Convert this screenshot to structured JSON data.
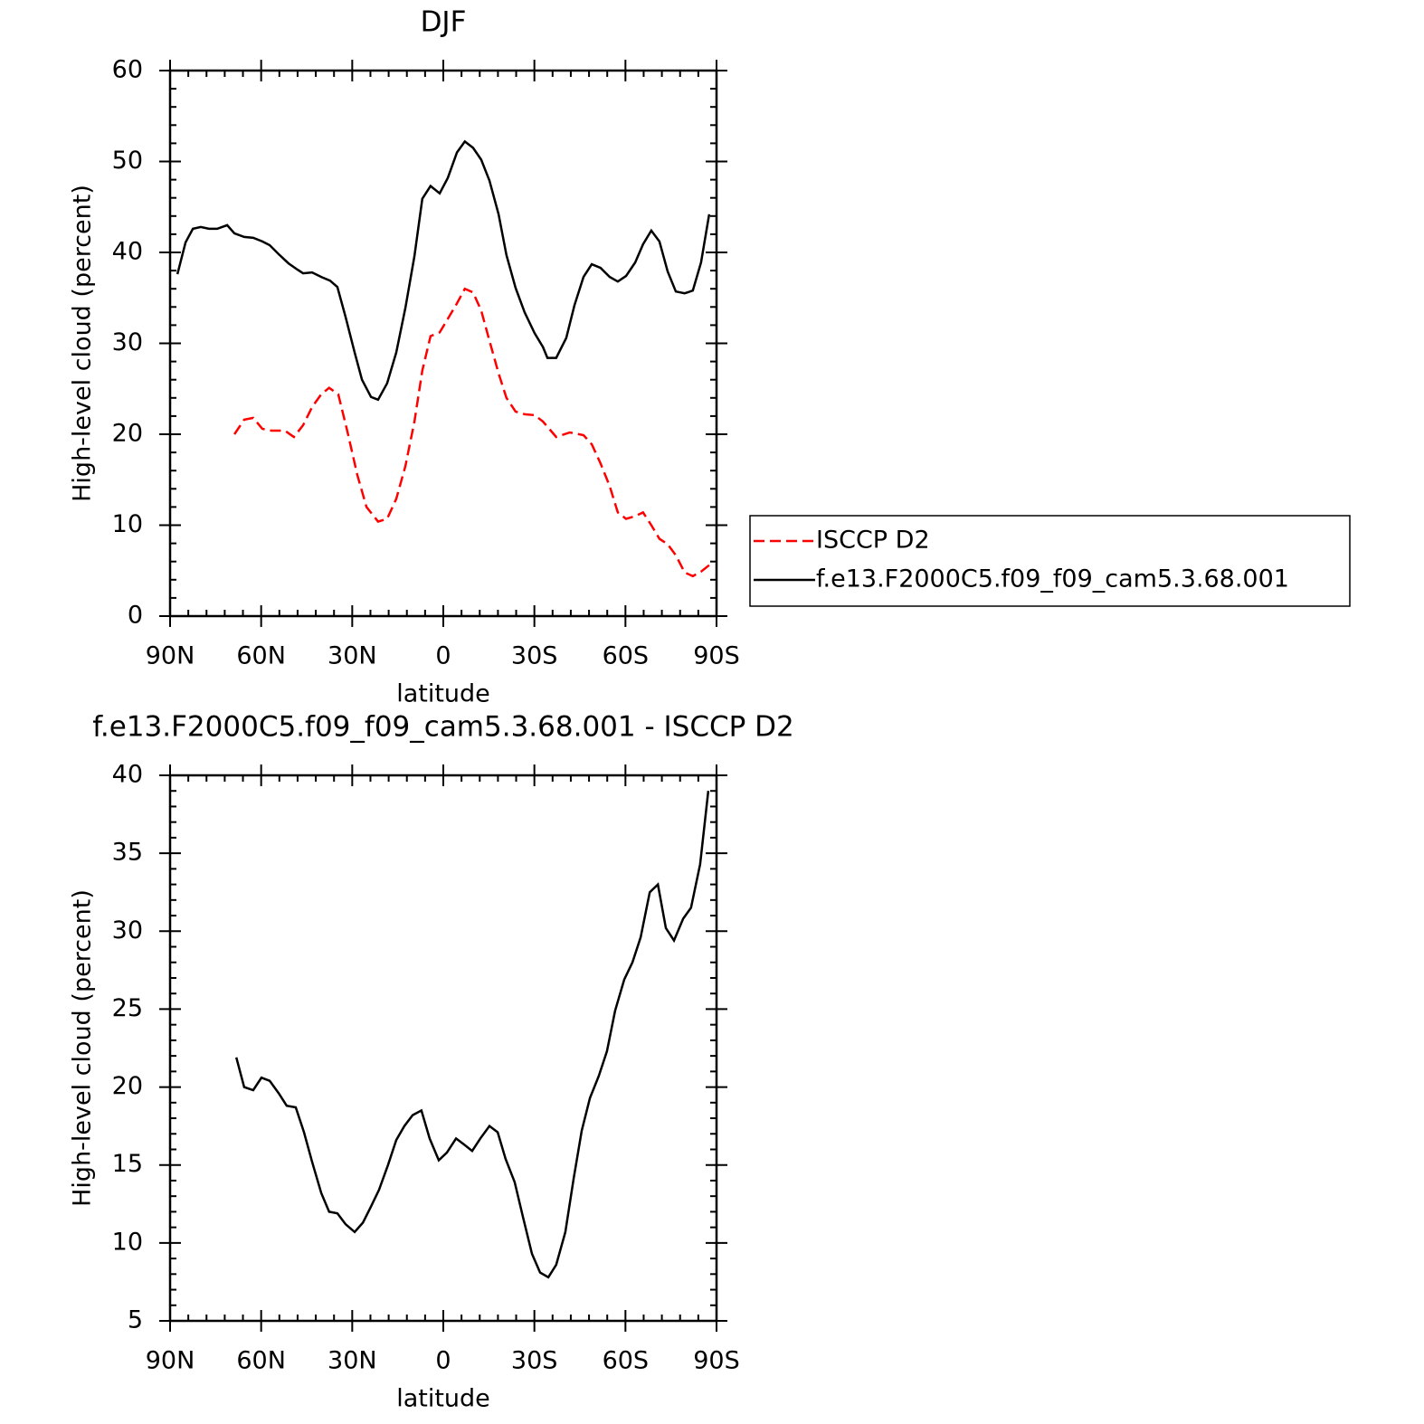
{
  "chart_data": [
    {
      "type": "line",
      "title": "DJF",
      "xlabel": "latitude",
      "ylabel": "High-level cloud (percent)",
      "xlim": [
        90,
        -90
      ],
      "xticks": [
        {
          "value": 90,
          "label": "90N"
        },
        {
          "value": 60,
          "label": "60N"
        },
        {
          "value": 30,
          "label": "30N"
        },
        0,
        {
          "value": -30,
          "label": "30S"
        },
        {
          "value": -60,
          "label": "60S"
        },
        {
          "value": -90,
          "label": "90S"
        }
      ],
      "ylim": [
        0,
        60
      ],
      "yticks": [
        0,
        10,
        20,
        30,
        40,
        50,
        60
      ],
      "minor_ticks": 5,
      "legend": "outside right",
      "series": [
        {
          "name": "ISCCP D2",
          "color": "#ff0000",
          "style": "dashed",
          "x": [
            68.8,
            65.6,
            62.6,
            59.6,
            56.6,
            52.2,
            49.2,
            46.2,
            43.2,
            40.2,
            37.6,
            34.6,
            31.6,
            28.3,
            25.3,
            21.5,
            18.5,
            15.5,
            12.5,
            9.5,
            6.9,
            4.2,
            1.2,
            -1.5,
            -4.5,
            -7.1,
            -9.8,
            -12.5,
            -15.2,
            -18.2,
            -20.8,
            -23.8,
            -26.8,
            -30.1,
            -32.8,
            -37.2,
            -41.7,
            -46.2,
            -48.9,
            -51.8,
            -54.8,
            -57.5,
            -60.2,
            -63.2,
            -65.8,
            -68.5,
            -71.2,
            -73.9,
            -76.6,
            -79.5,
            -82.2,
            -84.9,
            -87.6
          ],
          "values": [
            20.0,
            21.6,
            21.8,
            20.6,
            20.4,
            20.4,
            19.7,
            21.0,
            23.0,
            24.4,
            25.1,
            24.4,
            20.3,
            15.5,
            12.0,
            10.4,
            10.7,
            12.9,
            16.5,
            21.4,
            27.0,
            30.8,
            31.2,
            32.7,
            34.4,
            36.0,
            35.6,
            33.6,
            30.3,
            26.7,
            24.0,
            22.5,
            22.2,
            22.1,
            21.4,
            19.7,
            20.2,
            19.9,
            18.9,
            16.8,
            14.3,
            11.4,
            10.7,
            11.0,
            11.4,
            10.0,
            8.5,
            7.9,
            6.7,
            4.8,
            4.4,
            4.9,
            5.6
          ]
        },
        {
          "name": "f.e13.F2000C5.f09_f09_cam5.3.68.001",
          "color": "#000000",
          "style": "solid",
          "x": [
            87.6,
            84.9,
            82.5,
            79.9,
            77.2,
            74.5,
            71.2,
            68.8,
            65.6,
            62.6,
            59.6,
            57.2,
            54.2,
            51.0,
            48.0,
            46.2,
            43.2,
            40.2,
            37.3,
            34.9,
            32.2,
            29.2,
            26.8,
            23.8,
            21.5,
            18.5,
            15.5,
            12.5,
            9.5,
            6.9,
            4.2,
            1.2,
            -1.5,
            -4.5,
            -7.1,
            -9.8,
            -12.5,
            -15.2,
            -18.2,
            -20.8,
            -23.8,
            -26.8,
            -30.1,
            -32.8,
            -34.3,
            -37.2,
            -40.5,
            -43.2,
            -46.2,
            -48.9,
            -51.8,
            -54.8,
            -57.5,
            -60.2,
            -63.2,
            -65.8,
            -68.5,
            -71.2,
            -73.9,
            -76.6,
            -79.5,
            -82.2,
            -84.9,
            -87.6
          ],
          "values": [
            37.6,
            41.1,
            42.6,
            42.8,
            42.6,
            42.6,
            43.0,
            42.1,
            41.7,
            41.6,
            41.2,
            40.8,
            39.8,
            38.8,
            38.1,
            37.7,
            37.8,
            37.3,
            36.9,
            36.2,
            32.9,
            29.0,
            26.0,
            24.1,
            23.8,
            25.6,
            29.0,
            33.9,
            39.6,
            45.9,
            47.3,
            46.5,
            48.2,
            51.0,
            52.2,
            51.5,
            50.2,
            47.9,
            44.2,
            39.7,
            36.1,
            33.4,
            31.1,
            29.6,
            28.4,
            28.4,
            30.6,
            34.2,
            37.3,
            38.7,
            38.3,
            37.3,
            36.8,
            37.4,
            38.9,
            40.9,
            42.4,
            41.2,
            37.9,
            35.7,
            35.5,
            35.8,
            38.9,
            44.2
          ]
        }
      ]
    },
    {
      "type": "line",
      "title": "f.e13.F2000C5.f09_f09_cam5.3.68.001 - ISCCP D2",
      "xlabel": "latitude",
      "ylabel": "High-level cloud (percent)",
      "xlim": [
        90,
        -90
      ],
      "xticks": [
        {
          "value": 90,
          "label": "90N"
        },
        {
          "value": 60,
          "label": "60N"
        },
        {
          "value": 30,
          "label": "30N"
        },
        0,
        {
          "value": -30,
          "label": "30S"
        },
        {
          "value": -60,
          "label": "60S"
        },
        {
          "value": -90,
          "label": "90S"
        }
      ],
      "ylim": [
        5,
        40
      ],
      "yticks": [
        5,
        10,
        15,
        20,
        25,
        30,
        35,
        40
      ],
      "minor_ticks": 5,
      "series": [
        {
          "color": "#000000",
          "style": "solid",
          "x": [
            68.2,
            65.6,
            62.6,
            59.9,
            57.2,
            54.2,
            51.6,
            48.6,
            45.9,
            43.2,
            40.2,
            37.6,
            34.9,
            32.2,
            29.2,
            26.5,
            23.9,
            21.2,
            18.2,
            15.5,
            12.8,
            10.1,
            7.2,
            4.5,
            1.5,
            -1.2,
            -4.2,
            -6.9,
            -9.5,
            -12.2,
            -15.2,
            -17.9,
            -20.5,
            -23.5,
            -26.2,
            -29.2,
            -31.9,
            -34.6,
            -37.2,
            -40.2,
            -42.9,
            -45.6,
            -48.3,
            -51.2,
            -53.9,
            -56.6,
            -59.6,
            -62.3,
            -65.0,
            -68.0,
            -70.7,
            -73.3,
            -76.0,
            -79.0,
            -81.6,
            -84.6,
            -87.3
          ],
          "values": [
            21.9,
            20.0,
            19.8,
            20.6,
            20.4,
            19.6,
            18.8,
            18.7,
            17.1,
            15.2,
            13.2,
            12.0,
            11.9,
            11.2,
            10.7,
            11.3,
            12.3,
            13.4,
            15.0,
            16.6,
            17.5,
            18.2,
            18.5,
            16.7,
            15.3,
            15.8,
            16.7,
            16.3,
            15.9,
            16.7,
            17.5,
            17.1,
            15.4,
            13.9,
            11.7,
            9.3,
            8.1,
            7.8,
            8.6,
            10.7,
            14.1,
            17.2,
            19.3,
            20.7,
            22.3,
            24.9,
            26.9,
            28.0,
            29.6,
            32.5,
            33.0,
            30.2,
            29.4,
            30.8,
            31.5,
            34.3,
            39.0
          ]
        }
      ]
    }
  ]
}
